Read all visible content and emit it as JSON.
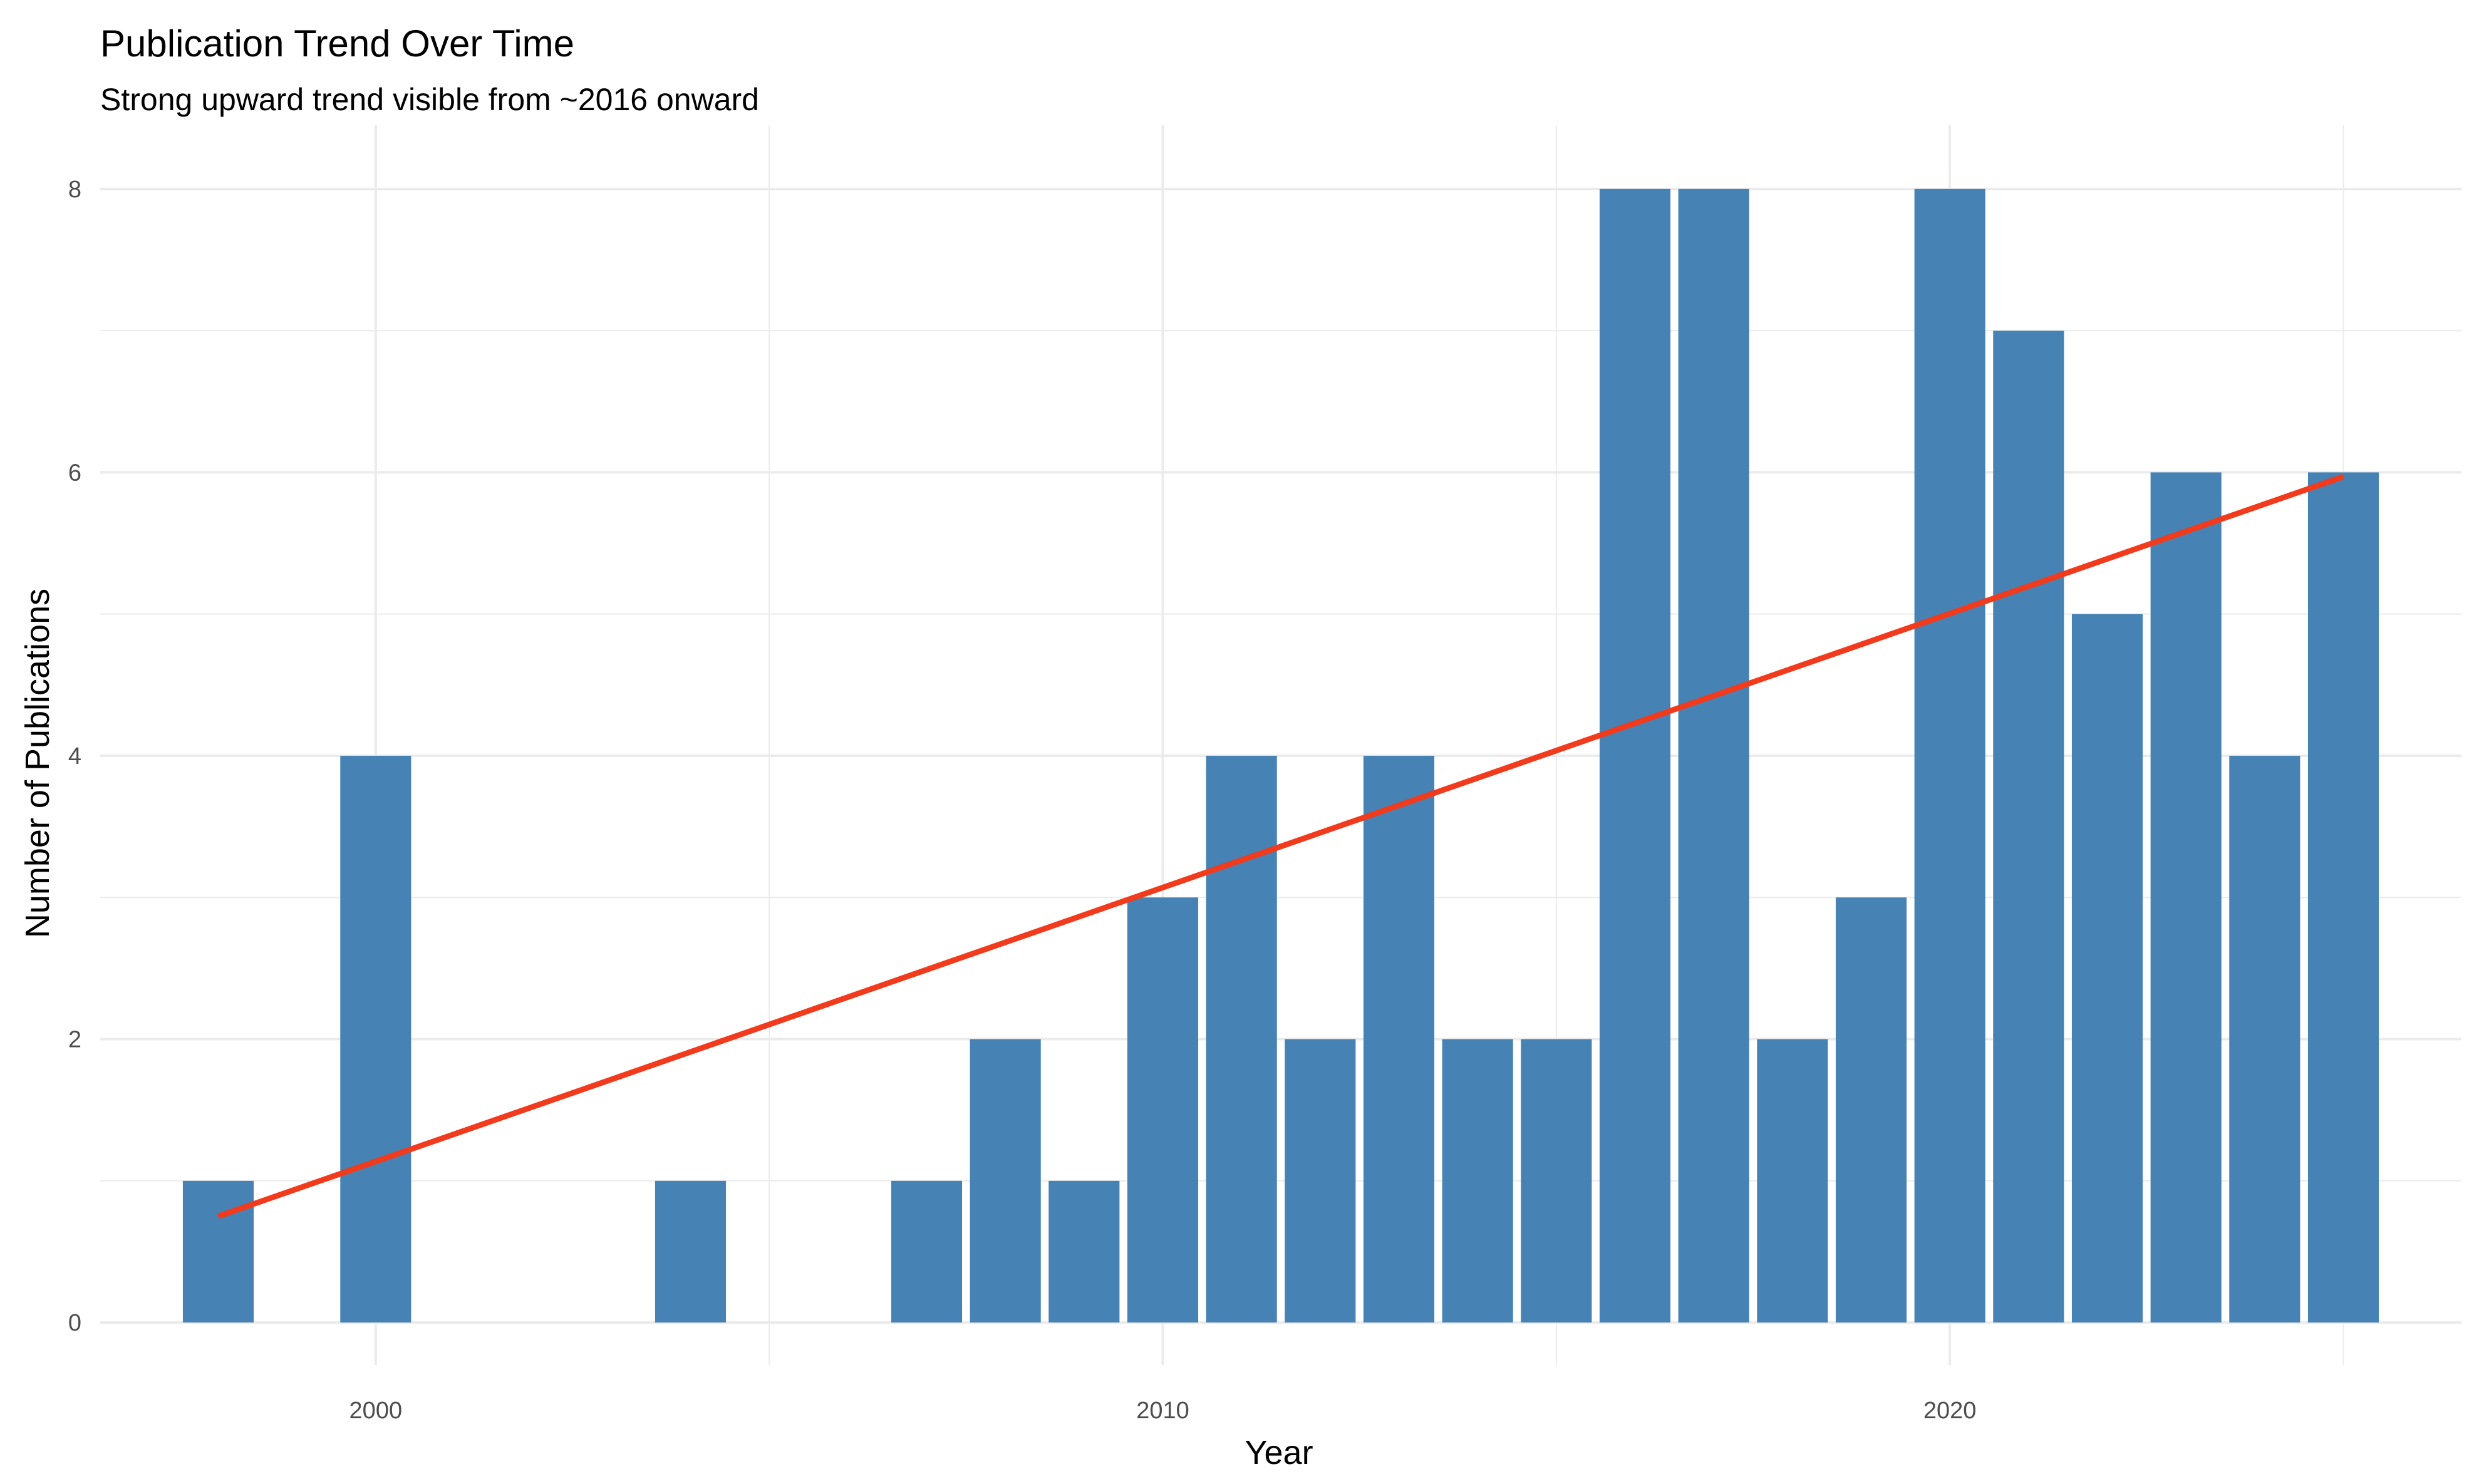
{
  "chart_data": {
    "type": "bar",
    "title": "Publication Trend Over Time",
    "subtitle": "Strong upward trend visible from ~2016 onward",
    "xlabel": "Year",
    "ylabel": "Number of Publications",
    "x": [
      1998,
      2000,
      2004,
      2007,
      2008,
      2009,
      2010,
      2011,
      2012,
      2013,
      2014,
      2015,
      2016,
      2017,
      2018,
      2019,
      2020,
      2021,
      2022,
      2023,
      2024,
      2025
    ],
    "values": [
      1,
      4,
      1,
      1,
      2,
      1,
      3,
      4,
      2,
      4,
      2,
      2,
      8,
      8,
      2,
      3,
      8,
      7,
      5,
      6,
      4,
      6
    ],
    "xlim": [
      1996.5,
      2026.5
    ],
    "ylim": [
      -0.3,
      8.45
    ],
    "x_ticks": [
      2000,
      2010,
      2020
    ],
    "x_minor_ticks": [
      1995,
      2005,
      2015,
      2025
    ],
    "y_ticks": [
      0,
      2,
      4,
      6,
      8
    ],
    "y_minor_ticks": [
      1,
      3,
      5,
      7
    ],
    "bar_width_years": 0.9,
    "bar_color": "#4682B4",
    "trend_line": {
      "type": "linear fit",
      "color": "#F23A1C",
      "x": [
        1998,
        2025
      ],
      "y": [
        0.75,
        5.97
      ]
    },
    "grid": true,
    "legend": "none",
    "background": "#FFFFFF",
    "grid_color": "#EBEBEB"
  }
}
